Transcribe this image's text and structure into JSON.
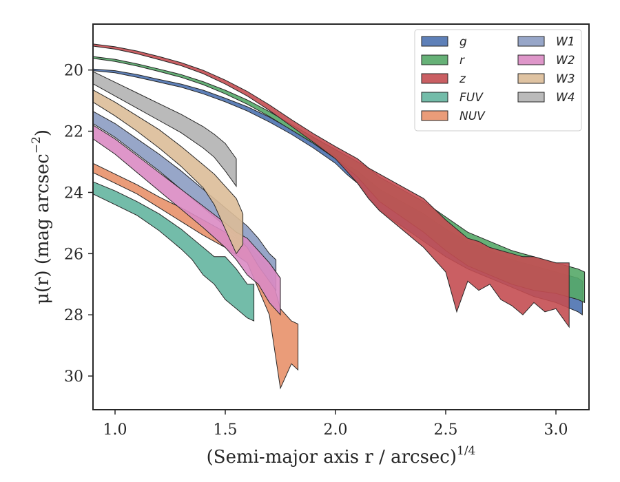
{
  "chart_data": {
    "type": "area",
    "xlabel": "(Semi-major axis r / arcsec)",
    "xlabel_exponent": "1/4",
    "ylabel": "μ(r) (mag arcsec",
    "ylabel_exponent": "−2",
    "ylabel_close": ")",
    "xlim": [
      0.9,
      3.15
    ],
    "ylim": [
      31.1,
      18.5
    ],
    "y_inverted": true,
    "x_ticks": [
      {
        "value": 1.0,
        "label": "1.0"
      },
      {
        "value": 1.5,
        "label": "1.5"
      },
      {
        "value": 2.0,
        "label": "2.0"
      },
      {
        "value": 2.5,
        "label": "2.5"
      },
      {
        "value": 3.0,
        "label": "3.0"
      }
    ],
    "y_ticks": [
      {
        "value": 20,
        "label": "20"
      },
      {
        "value": 22,
        "label": "22"
      },
      {
        "value": 24,
        "label": "24"
      },
      {
        "value": 26,
        "label": "26"
      },
      {
        "value": 28,
        "label": "28"
      },
      {
        "value": 30,
        "label": "30"
      }
    ],
    "grid": false,
    "legend_placement": "top-right",
    "legend_columns": 2,
    "series": [
      {
        "name": "g",
        "color": "#4c72b0",
        "points": [
          [
            0.9,
            19.97,
            20.02
          ],
          [
            1.0,
            20.02,
            20.09
          ],
          [
            1.1,
            20.15,
            20.24
          ],
          [
            1.2,
            20.31,
            20.4
          ],
          [
            1.3,
            20.46,
            20.56
          ],
          [
            1.4,
            20.66,
            20.78
          ],
          [
            1.5,
            20.92,
            21.04
          ],
          [
            1.6,
            21.2,
            21.34
          ],
          [
            1.7,
            21.54,
            21.7
          ],
          [
            1.8,
            21.95,
            22.1
          ],
          [
            1.9,
            22.35,
            22.55
          ],
          [
            2.0,
            22.8,
            23.05
          ],
          [
            2.05,
            23.1,
            23.4
          ],
          [
            2.1,
            23.3,
            23.7
          ],
          [
            2.15,
            23.6,
            24.2
          ],
          [
            2.2,
            23.9,
            24.6
          ],
          [
            2.3,
            24.3,
            25.1
          ],
          [
            2.4,
            24.7,
            25.6
          ],
          [
            2.5,
            25.2,
            26.1
          ],
          [
            2.6,
            25.6,
            26.5
          ],
          [
            2.7,
            25.9,
            26.8
          ],
          [
            2.8,
            26.2,
            27.1
          ],
          [
            2.9,
            26.4,
            27.4
          ],
          [
            3.0,
            26.6,
            27.6
          ],
          [
            3.1,
            26.8,
            27.9
          ],
          [
            3.12,
            26.9,
            28.0
          ]
        ]
      },
      {
        "name": "r",
        "color": "#55a868",
        "points": [
          [
            0.9,
            19.56,
            19.62
          ],
          [
            1.0,
            19.65,
            19.72
          ],
          [
            1.1,
            19.8,
            19.87
          ],
          [
            1.2,
            19.97,
            20.05
          ],
          [
            1.3,
            20.15,
            20.24
          ],
          [
            1.4,
            20.38,
            20.48
          ],
          [
            1.5,
            20.66,
            20.78
          ],
          [
            1.6,
            20.98,
            21.12
          ],
          [
            1.7,
            21.36,
            21.52
          ],
          [
            1.8,
            21.78,
            21.96
          ],
          [
            1.9,
            22.2,
            22.4
          ],
          [
            2.0,
            22.6,
            22.9
          ],
          [
            2.05,
            22.8,
            23.2
          ],
          [
            2.1,
            23.0,
            23.5
          ],
          [
            2.15,
            23.2,
            23.9
          ],
          [
            2.2,
            23.5,
            24.3
          ],
          [
            2.3,
            23.9,
            24.8
          ],
          [
            2.4,
            24.3,
            25.3
          ],
          [
            2.5,
            24.8,
            25.9
          ],
          [
            2.6,
            25.3,
            26.4
          ],
          [
            2.7,
            25.6,
            26.7
          ],
          [
            2.8,
            25.9,
            27.0
          ],
          [
            2.9,
            26.1,
            27.2
          ],
          [
            3.0,
            26.3,
            27.3
          ],
          [
            3.1,
            26.5,
            27.5
          ],
          [
            3.13,
            26.6,
            27.6
          ]
        ]
      },
      {
        "name": "z",
        "color": "#c44e52",
        "points": [
          [
            0.9,
            19.15,
            19.22
          ],
          [
            1.0,
            19.24,
            19.32
          ],
          [
            1.1,
            19.38,
            19.47
          ],
          [
            1.2,
            19.56,
            19.66
          ],
          [
            1.3,
            19.76,
            19.86
          ],
          [
            1.4,
            20.01,
            20.12
          ],
          [
            1.5,
            20.33,
            20.46
          ],
          [
            1.6,
            20.7,
            20.85
          ],
          [
            1.7,
            21.14,
            21.32
          ],
          [
            1.8,
            21.62,
            21.84
          ],
          [
            1.9,
            22.08,
            22.36
          ],
          [
            2.0,
            22.5,
            22.9
          ],
          [
            2.05,
            22.7,
            23.3
          ],
          [
            2.1,
            22.9,
            23.7
          ],
          [
            2.15,
            23.2,
            24.2
          ],
          [
            2.2,
            23.4,
            24.6
          ],
          [
            2.3,
            23.8,
            25.2
          ],
          [
            2.4,
            24.2,
            25.8
          ],
          [
            2.5,
            24.9,
            26.6
          ],
          [
            2.55,
            25.2,
            27.9
          ],
          [
            2.6,
            25.5,
            26.9
          ],
          [
            2.65,
            25.6,
            27.2
          ],
          [
            2.7,
            25.8,
            27.0
          ],
          [
            2.75,
            25.9,
            27.5
          ],
          [
            2.8,
            26.0,
            27.7
          ],
          [
            2.85,
            26.1,
            28.0
          ],
          [
            2.9,
            26.1,
            27.6
          ],
          [
            2.95,
            26.2,
            27.9
          ],
          [
            3.0,
            26.3,
            27.8
          ],
          [
            3.06,
            26.3,
            28.4
          ]
        ]
      },
      {
        "name": "FUV",
        "color": "#64b5a0",
        "points": [
          [
            0.9,
            23.65,
            24.05
          ],
          [
            1.0,
            23.95,
            24.4
          ],
          [
            1.1,
            24.3,
            24.75
          ],
          [
            1.2,
            24.7,
            25.25
          ],
          [
            1.3,
            25.2,
            25.85
          ],
          [
            1.35,
            25.5,
            26.2
          ],
          [
            1.4,
            25.8,
            26.7
          ],
          [
            1.45,
            26.1,
            27.0
          ],
          [
            1.5,
            26.1,
            27.5
          ],
          [
            1.55,
            26.5,
            27.8
          ],
          [
            1.6,
            27.0,
            28.1
          ],
          [
            1.63,
            27.0,
            28.2
          ]
        ]
      },
      {
        "name": "NUV",
        "color": "#e8916a",
        "points": [
          [
            0.9,
            23.05,
            23.35
          ],
          [
            1.0,
            23.4,
            23.7
          ],
          [
            1.1,
            23.75,
            24.05
          ],
          [
            1.2,
            24.15,
            24.5
          ],
          [
            1.3,
            24.5,
            24.95
          ],
          [
            1.4,
            24.9,
            25.4
          ],
          [
            1.5,
            25.3,
            25.8
          ],
          [
            1.6,
            25.7,
            26.3
          ],
          [
            1.7,
            26.5,
            28.0
          ],
          [
            1.75,
            27.8,
            30.4
          ],
          [
            1.8,
            28.2,
            29.6
          ],
          [
            1.83,
            28.3,
            29.8
          ]
        ]
      },
      {
        "name": "W1",
        "color": "#8c9cc2",
        "points": [
          [
            0.9,
            21.35,
            21.75
          ],
          [
            1.0,
            21.75,
            22.2
          ],
          [
            1.1,
            22.25,
            22.75
          ],
          [
            1.2,
            22.75,
            23.3
          ],
          [
            1.3,
            23.3,
            23.9
          ],
          [
            1.4,
            23.9,
            24.5
          ],
          [
            1.5,
            24.5,
            25.1
          ],
          [
            1.6,
            25.1,
            25.8
          ],
          [
            1.65,
            25.5,
            26.4
          ],
          [
            1.7,
            26.0,
            26.9
          ],
          [
            1.73,
            26.2,
            27.2
          ]
        ]
      },
      {
        "name": "W2",
        "color": "#da8bc3",
        "points": [
          [
            0.9,
            21.8,
            22.25
          ],
          [
            1.0,
            22.25,
            22.75
          ],
          [
            1.1,
            22.8,
            23.35
          ],
          [
            1.2,
            23.35,
            23.95
          ],
          [
            1.3,
            23.9,
            24.55
          ],
          [
            1.4,
            24.45,
            25.15
          ],
          [
            1.5,
            25.0,
            25.8
          ],
          [
            1.55,
            25.3,
            26.2
          ],
          [
            1.6,
            25.5,
            26.7
          ],
          [
            1.65,
            25.9,
            27.0
          ],
          [
            1.7,
            26.3,
            27.6
          ],
          [
            1.75,
            26.8,
            28.0
          ]
        ]
      },
      {
        "name": "W3",
        "color": "#dbbd98",
        "points": [
          [
            0.9,
            20.65,
            21.05
          ],
          [
            1.0,
            21.05,
            21.5
          ],
          [
            1.1,
            21.5,
            22.0
          ],
          [
            1.2,
            21.95,
            22.55
          ],
          [
            1.3,
            22.5,
            23.15
          ],
          [
            1.4,
            23.1,
            23.85
          ],
          [
            1.45,
            23.4,
            24.4
          ],
          [
            1.5,
            23.8,
            25.2
          ],
          [
            1.55,
            24.2,
            26.0
          ],
          [
            1.58,
            24.7,
            25.7
          ]
        ]
      },
      {
        "name": "W4",
        "color": "#b2b2b2",
        "points": [
          [
            0.9,
            20.05,
            20.45
          ],
          [
            1.0,
            20.4,
            20.85
          ],
          [
            1.1,
            20.75,
            21.25
          ],
          [
            1.2,
            21.1,
            21.65
          ],
          [
            1.3,
            21.45,
            22.05
          ],
          [
            1.4,
            21.85,
            22.55
          ],
          [
            1.45,
            22.1,
            22.85
          ],
          [
            1.5,
            22.4,
            23.3
          ],
          [
            1.55,
            22.9,
            23.8
          ]
        ]
      }
    ]
  }
}
